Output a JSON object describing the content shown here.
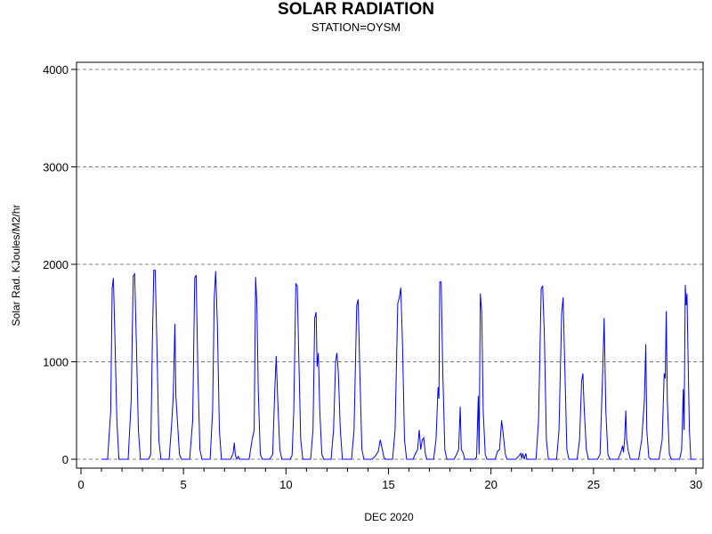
{
  "chart_data": {
    "type": "line",
    "title": "SOLAR RADIATION",
    "subtitle": "STATION=OYSM",
    "xlabel": "DEC 2020",
    "ylabel": "Solar Rad. KJoules/M2/hr",
    "xlim": [
      0,
      30.3
    ],
    "ylim": [
      0,
      4000
    ],
    "x_ticks": [
      0,
      5,
      10,
      15,
      20,
      25,
      30
    ],
    "y_ticks": [
      0,
      1000,
      2000,
      3000,
      4000
    ],
    "grid": "horizontal dashed",
    "color": "#0000ff",
    "series": [
      {
        "points": [
          [
            1.0,
            0
          ],
          [
            1.3,
            0
          ],
          [
            1.45,
            500
          ],
          [
            1.52,
            1750
          ],
          [
            1.58,
            1860
          ],
          [
            1.65,
            1300
          ],
          [
            1.75,
            400
          ],
          [
            1.85,
            0
          ],
          [
            2.3,
            0
          ],
          [
            2.45,
            600
          ],
          [
            2.55,
            1880
          ],
          [
            2.62,
            1900
          ],
          [
            2.7,
            1200
          ],
          [
            2.8,
            300
          ],
          [
            2.9,
            0
          ],
          [
            3.3,
            0
          ],
          [
            3.4,
            50
          ],
          [
            3.48,
            1200
          ],
          [
            3.55,
            1940
          ],
          [
            3.62,
            1940
          ],
          [
            3.7,
            1200
          ],
          [
            3.8,
            200
          ],
          [
            3.9,
            0
          ],
          [
            4.3,
            0
          ],
          [
            4.42,
            350
          ],
          [
            4.5,
            650
          ],
          [
            4.58,
            1390
          ],
          [
            4.63,
            650
          ],
          [
            4.7,
            400
          ],
          [
            4.8,
            50
          ],
          [
            4.9,
            0
          ],
          [
            5.3,
            0
          ],
          [
            5.45,
            400
          ],
          [
            5.55,
            1860
          ],
          [
            5.62,
            1890
          ],
          [
            5.7,
            900
          ],
          [
            5.8,
            100
          ],
          [
            5.9,
            0
          ],
          [
            6.3,
            0
          ],
          [
            6.42,
            500
          ],
          [
            6.5,
            1650
          ],
          [
            6.57,
            1930
          ],
          [
            6.65,
            1400
          ],
          [
            6.75,
            300
          ],
          [
            6.85,
            0
          ],
          [
            7.3,
            0
          ],
          [
            7.42,
            60
          ],
          [
            7.48,
            170
          ],
          [
            7.53,
            40
          ],
          [
            7.6,
            0
          ],
          [
            7.67,
            30
          ],
          [
            7.75,
            0
          ],
          [
            8.2,
            0
          ],
          [
            8.35,
            200
          ],
          [
            8.45,
            300
          ],
          [
            8.52,
            1870
          ],
          [
            8.58,
            1600
          ],
          [
            8.65,
            700
          ],
          [
            8.75,
            50
          ],
          [
            8.85,
            0
          ],
          [
            9.2,
            0
          ],
          [
            9.35,
            50
          ],
          [
            9.45,
            700
          ],
          [
            9.52,
            1060
          ],
          [
            9.6,
            600
          ],
          [
            9.7,
            100
          ],
          [
            9.8,
            0
          ],
          [
            10.2,
            0
          ],
          [
            10.3,
            40
          ],
          [
            10.38,
            500
          ],
          [
            10.48,
            1800
          ],
          [
            10.55,
            1780
          ],
          [
            10.62,
            1100
          ],
          [
            10.72,
            200
          ],
          [
            10.82,
            0
          ],
          [
            11.2,
            0
          ],
          [
            11.32,
            300
          ],
          [
            11.4,
            1450
          ],
          [
            11.47,
            1510
          ],
          [
            11.52,
            950
          ],
          [
            11.58,
            1090
          ],
          [
            11.65,
            500
          ],
          [
            11.75,
            50
          ],
          [
            11.85,
            0
          ],
          [
            12.2,
            0
          ],
          [
            12.32,
            300
          ],
          [
            12.42,
            1000
          ],
          [
            12.48,
            1090
          ],
          [
            12.55,
            900
          ],
          [
            12.65,
            300
          ],
          [
            12.75,
            0
          ],
          [
            13.2,
            0
          ],
          [
            13.32,
            300
          ],
          [
            13.45,
            1580
          ],
          [
            13.52,
            1640
          ],
          [
            13.6,
            900
          ],
          [
            13.7,
            100
          ],
          [
            13.8,
            0
          ],
          [
            14.2,
            0
          ],
          [
            14.35,
            30
          ],
          [
            14.5,
            80
          ],
          [
            14.6,
            200
          ],
          [
            14.68,
            120
          ],
          [
            14.78,
            20
          ],
          [
            14.85,
            0
          ],
          [
            15.2,
            0
          ],
          [
            15.32,
            300
          ],
          [
            15.45,
            1600
          ],
          [
            15.52,
            1650
          ],
          [
            15.6,
            1760
          ],
          [
            15.68,
            1200
          ],
          [
            15.78,
            200
          ],
          [
            15.88,
            0
          ],
          [
            16.2,
            0
          ],
          [
            16.3,
            50
          ],
          [
            16.42,
            100
          ],
          [
            16.5,
            300
          ],
          [
            16.57,
            100
          ],
          [
            16.65,
            200
          ],
          [
            16.72,
            220
          ],
          [
            16.8,
            50
          ],
          [
            16.88,
            0
          ],
          [
            17.2,
            0
          ],
          [
            17.32,
            200
          ],
          [
            17.42,
            740
          ],
          [
            17.46,
            620
          ],
          [
            17.5,
            1820
          ],
          [
            17.57,
            1820
          ],
          [
            17.65,
            900
          ],
          [
            17.75,
            100
          ],
          [
            17.85,
            0
          ],
          [
            18.2,
            0
          ],
          [
            18.32,
            50
          ],
          [
            18.42,
            100
          ],
          [
            18.5,
            540
          ],
          [
            18.55,
            100
          ],
          [
            18.65,
            60
          ],
          [
            18.72,
            0
          ],
          [
            19.2,
            0
          ],
          [
            19.3,
            20
          ],
          [
            19.38,
            650
          ],
          [
            19.42,
            50
          ],
          [
            19.48,
            1700
          ],
          [
            19.55,
            1500
          ],
          [
            19.62,
            500
          ],
          [
            19.72,
            50
          ],
          [
            19.8,
            0
          ],
          [
            20.2,
            0
          ],
          [
            20.32,
            80
          ],
          [
            20.42,
            100
          ],
          [
            20.52,
            400
          ],
          [
            20.6,
            250
          ],
          [
            20.7,
            50
          ],
          [
            20.78,
            0
          ],
          [
            21.2,
            0
          ],
          [
            21.35,
            30
          ],
          [
            21.45,
            60
          ],
          [
            21.5,
            10
          ],
          [
            21.55,
            60
          ],
          [
            21.62,
            0
          ],
          [
            21.7,
            60
          ],
          [
            21.75,
            0
          ],
          [
            22.2,
            0
          ],
          [
            22.32,
            400
          ],
          [
            22.45,
            1750
          ],
          [
            22.52,
            1780
          ],
          [
            22.6,
            1300
          ],
          [
            22.7,
            200
          ],
          [
            22.8,
            0
          ],
          [
            23.2,
            0
          ],
          [
            23.32,
            300
          ],
          [
            23.45,
            1500
          ],
          [
            23.52,
            1660
          ],
          [
            23.6,
            950
          ],
          [
            23.7,
            100
          ],
          [
            23.8,
            0
          ],
          [
            24.2,
            0
          ],
          [
            24.32,
            200
          ],
          [
            24.42,
            800
          ],
          [
            24.48,
            880
          ],
          [
            24.55,
            500
          ],
          [
            24.65,
            100
          ],
          [
            24.75,
            0
          ],
          [
            25.2,
            0
          ],
          [
            25.32,
            50
          ],
          [
            25.45,
            900
          ],
          [
            25.52,
            1450
          ],
          [
            25.6,
            500
          ],
          [
            25.7,
            50
          ],
          [
            25.8,
            0
          ],
          [
            26.2,
            0
          ],
          [
            26.35,
            80
          ],
          [
            26.42,
            140
          ],
          [
            26.46,
            70
          ],
          [
            26.52,
            200
          ],
          [
            26.58,
            500
          ],
          [
            26.62,
            200
          ],
          [
            26.7,
            80
          ],
          [
            26.8,
            0
          ],
          [
            27.2,
            0
          ],
          [
            27.35,
            200
          ],
          [
            27.48,
            600
          ],
          [
            27.55,
            1180
          ],
          [
            27.6,
            300
          ],
          [
            27.7,
            20
          ],
          [
            27.8,
            0
          ],
          [
            28.2,
            0
          ],
          [
            28.35,
            200
          ],
          [
            28.45,
            880
          ],
          [
            28.5,
            830
          ],
          [
            28.55,
            1520
          ],
          [
            28.6,
            600
          ],
          [
            28.7,
            50
          ],
          [
            28.8,
            0
          ],
          [
            29.2,
            0
          ],
          [
            29.3,
            100
          ],
          [
            29.38,
            720
          ],
          [
            29.42,
            300
          ],
          [
            29.48,
            1790
          ],
          [
            29.52,
            1580
          ],
          [
            29.56,
            1700
          ],
          [
            29.6,
            1200
          ],
          [
            29.68,
            300
          ],
          [
            29.75,
            0
          ],
          [
            30.0,
            0
          ]
        ]
      }
    ]
  }
}
